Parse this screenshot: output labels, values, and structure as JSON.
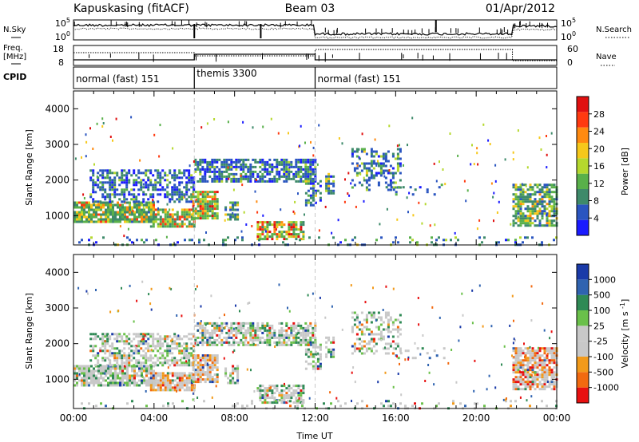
{
  "header": {
    "radar": "Kapuskasing (fitACF)",
    "beam": "Beam 03",
    "date": "01/Apr/2012"
  },
  "side_labels": {
    "nsky": "N.Sky",
    "freq_line1": "Freq.",
    "freq_line2": "[MHz]",
    "cpid": "CPID",
    "nsearch": "N.Search",
    "nave": "Nave"
  },
  "top_panel_ticks": {
    "nsky_left": [
      "10^5",
      "10^0"
    ],
    "nsky_right": [
      "10^5",
      "10^0"
    ],
    "freq_left": [
      "18",
      "8"
    ],
    "nave_right": [
      "60",
      "0"
    ]
  },
  "modes": [
    {
      "label": "normal (fast) 151",
      "start_hour": 0
    },
    {
      "label": "themis 3300",
      "start_hour": 6.0
    },
    {
      "label": "normal (fast) 151",
      "start_hour": 12.0
    }
  ],
  "chart_data": [
    {
      "type": "heatmap",
      "name": "Power",
      "ylabel": "Slant Range [km]",
      "xlim": [
        0,
        24
      ],
      "ylim": [
        180,
        4500
      ],
      "y_ticks": [
        1000,
        2000,
        3000,
        4000
      ],
      "colorbar": {
        "label": "Power [dB]",
        "ticks": [
          "4",
          "8",
          "12",
          "16",
          "20",
          "24",
          "28"
        ],
        "colors": [
          "#1a1aff",
          "#2a55c0",
          "#3e8a6a",
          "#59b04a",
          "#b5d82e",
          "#f6c81a",
          "#ff8a10",
          "#ff3a10",
          "#e01010"
        ]
      }
    },
    {
      "type": "heatmap",
      "name": "Velocity",
      "ylabel": "Slant Range [km]",
      "xlabel": "Time UT",
      "xlim": [
        0,
        24
      ],
      "ylim": [
        180,
        4500
      ],
      "y_ticks": [
        1000,
        2000,
        3000,
        4000
      ],
      "x_tick_labels": [
        "00:00",
        "04:00",
        "08:00",
        "12:00",
        "16:00",
        "20:00",
        "00:00"
      ],
      "colorbar": {
        "label": "Velocity [m s-1]",
        "ticks": [
          "1000",
          "500",
          "100",
          "25",
          "-25",
          "-100",
          "-500",
          "-1000"
        ],
        "colors": [
          "#1a3aa8",
          "#2f63b0",
          "#2f8a55",
          "#6ac04a",
          "#c8c8c8",
          "#c8c8c8",
          "#f29a1a",
          "#f26a10",
          "#e81010"
        ]
      }
    }
  ]
}
